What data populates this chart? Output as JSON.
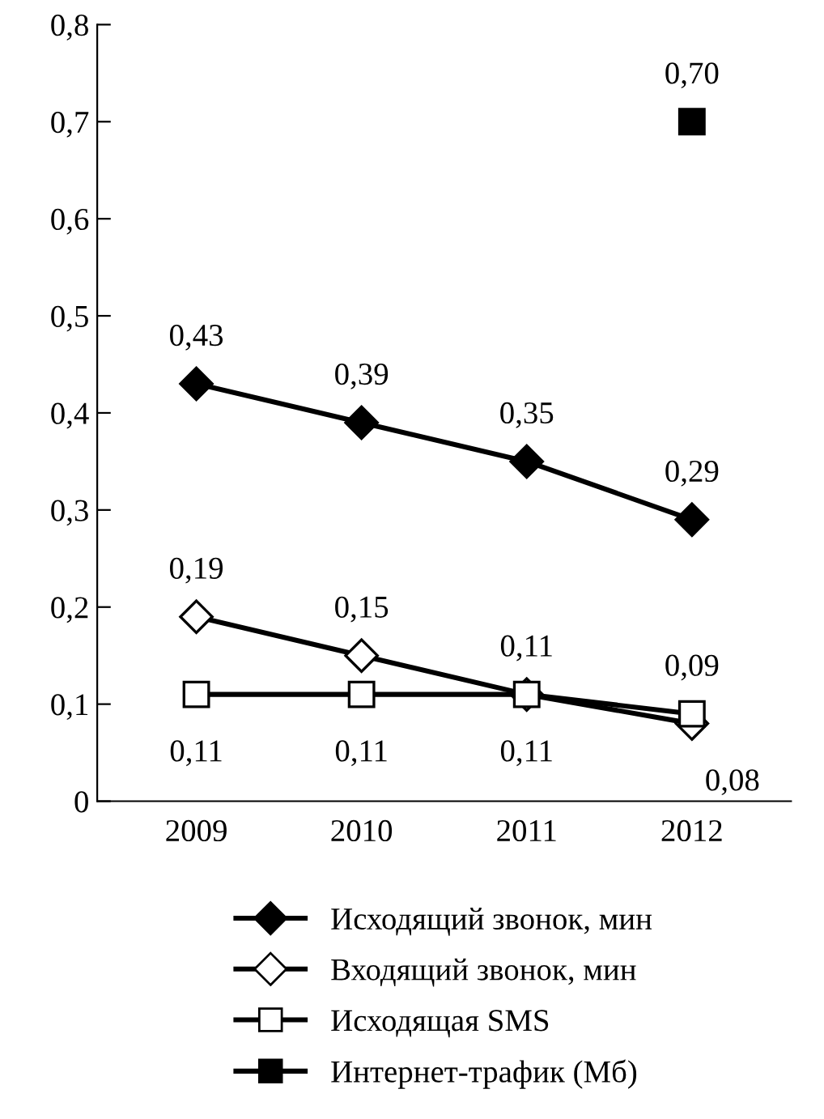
{
  "chart_data": {
    "type": "line",
    "categories": [
      "2009",
      "2010",
      "2011",
      "2012"
    ],
    "series": [
      {
        "name": "Исходящий звонок, мин",
        "color": "#000000",
        "marker": "diamond",
        "values": [
          0.43,
          0.39,
          0.35,
          0.29
        ],
        "value_labels": [
          "0,43",
          "0,39",
          "0,35",
          "0,29"
        ]
      },
      {
        "name": "Входящий звонок, мин",
        "color": "#000000",
        "marker": "diamond",
        "values": [
          0.19,
          0.15,
          0.11,
          0.08
        ],
        "value_labels": [
          "0,19",
          "0,15",
          "0,11",
          "0,08"
        ]
      },
      {
        "name": "Исходящая SMS",
        "color": "#000000",
        "marker": "square",
        "values": [
          0.11,
          0.11,
          0.11,
          0.09
        ],
        "value_labels": [
          "0,11",
          "0,11",
          "0,11",
          "0,09"
        ]
      },
      {
        "name": "Интернет-трафик (Мб)",
        "color": "#000000",
        "marker": "square",
        "values": [
          null,
          null,
          null,
          0.7
        ],
        "value_labels": [
          null,
          null,
          null,
          "0,70"
        ]
      }
    ],
    "ylim": [
      0,
      0.8
    ],
    "yticks": [
      0,
      {
        "value": 0.1,
        "label": "0,1"
      },
      {
        "value": 0.2,
        "label": "0,2"
      },
      {
        "value": 0.3,
        "label": "0,3"
      },
      {
        "value": 0.4,
        "label": "0,4"
      },
      {
        "value": 0.5,
        "label": "0,5"
      },
      {
        "value": 0.6,
        "label": "0,6"
      },
      {
        "value": 0.7,
        "label": "0,7"
      },
      {
        "value": 0.8,
        "label": "0,8"
      }
    ],
    "grid": false,
    "legend": "bottom",
    "line_style": "solid"
  }
}
